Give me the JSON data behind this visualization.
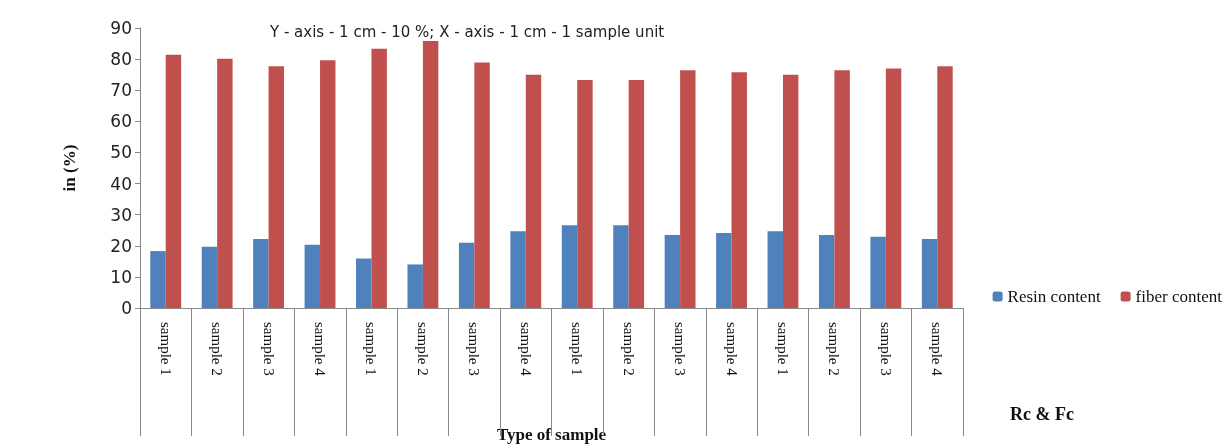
{
  "chart_data": {
    "type": "bar",
    "xlabel": "Type of sample",
    "ylabel": "in (%)",
    "annotations": [
      "Y - axis - 1 cm - 10 %; X - axis - 1 cm - 1 sample unit",
      "Rc & Fc"
    ],
    "categories": [
      "sample 1",
      "sample 2",
      "sample 3",
      "sample 4",
      "sample 1",
      "sample 2",
      "sample 3",
      "sample 4",
      "sample 1",
      "sample 2",
      "sample 3",
      "sample 4",
      "sample 1",
      "sample 2",
      "sample 3",
      "sample 4"
    ],
    "series": [
      {
        "name": "Resin content",
        "color": "#4f81bd",
        "values": [
          18.3,
          19.7,
          22.2,
          20.3,
          15.9,
          14,
          21,
          24.7,
          26.6,
          26.6,
          23.5,
          24.1,
          24.7,
          23.5,
          22.9,
          22.2
        ]
      },
      {
        "name": "fiber content",
        "color": "#c0504d",
        "values": [
          81.4,
          80.1,
          77.7,
          79.6,
          83.3,
          85.8,
          78.9,
          75,
          73.3,
          73.3,
          76.4,
          75.8,
          75,
          76.4,
          77,
          77.7
        ]
      }
    ],
    "ylim": [
      0,
      90
    ],
    "yticks": [
      0,
      10,
      20,
      30,
      40,
      50,
      60,
      70,
      80,
      90
    ],
    "grid": false,
    "legend": "right"
  }
}
